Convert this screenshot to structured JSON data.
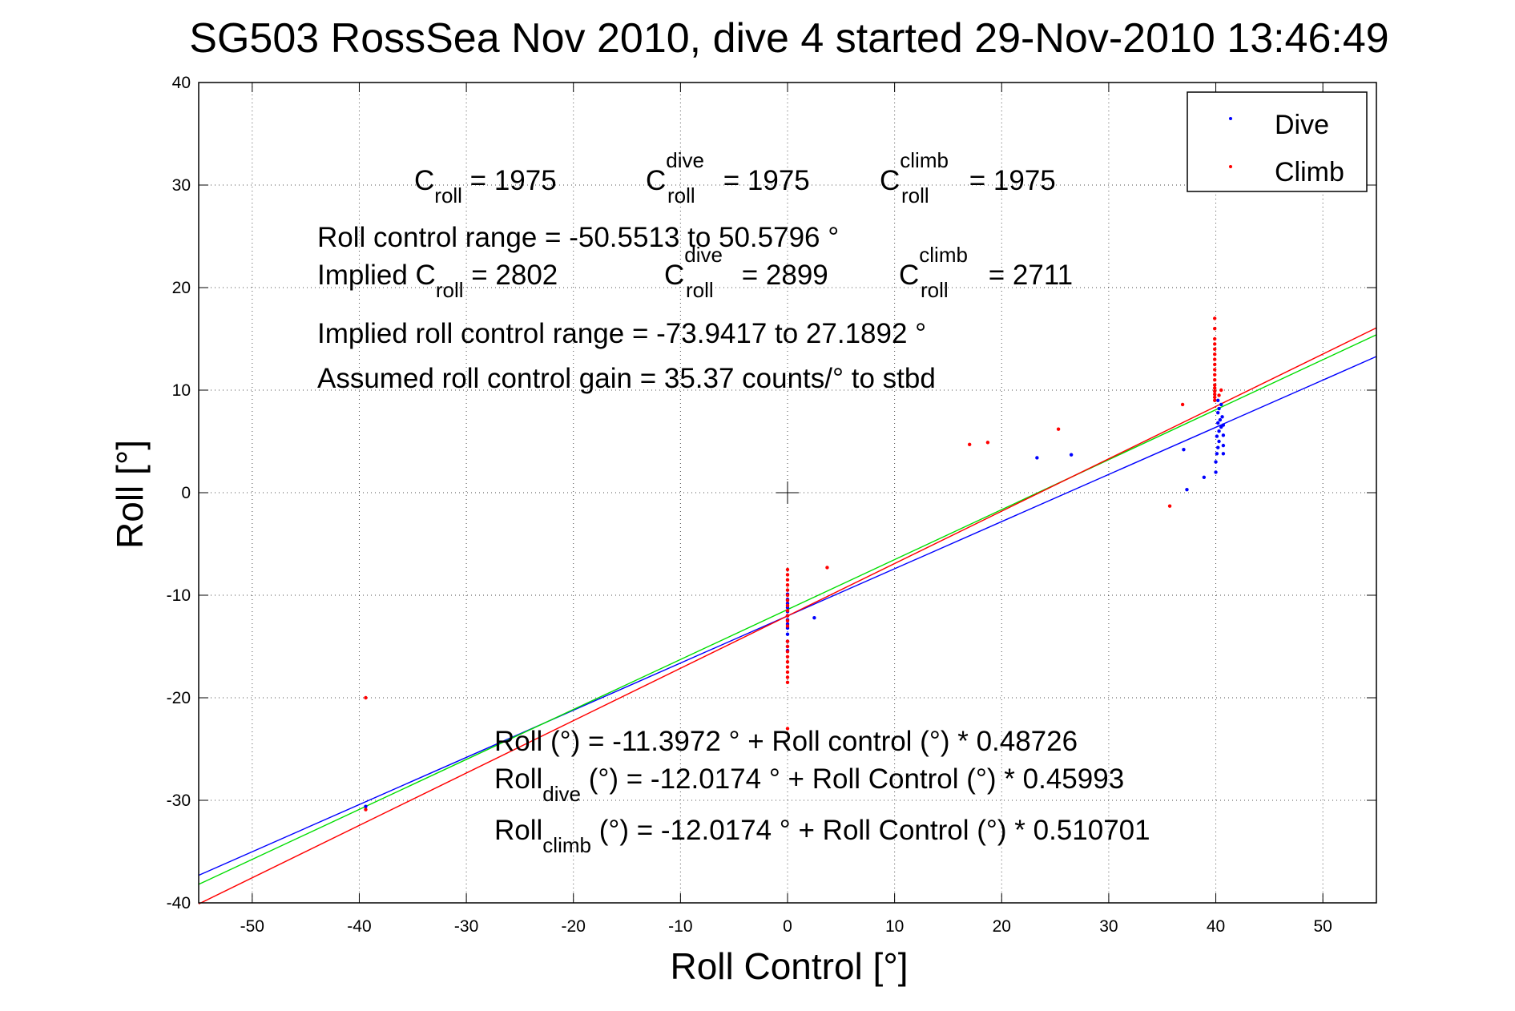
{
  "chart_data": {
    "type": "scatter",
    "title": "SG503 RossSea Nov 2010, dive 4 started 29-Nov-2010 13:46:49",
    "xlabel": "Roll Control [°]",
    "ylabel": "Roll [°]",
    "xlim": [
      -55,
      55
    ],
    "ylim": [
      -40,
      40
    ],
    "x_ticks": [
      "-50",
      "-40",
      "-30",
      "-20",
      "-10",
      "0",
      "10",
      "20",
      "30",
      "40",
      "50"
    ],
    "y_ticks": [
      "40",
      "30",
      "20",
      "10",
      "0",
      "-10",
      "-20",
      "-30",
      "-40"
    ],
    "grid": "dotted",
    "legend_placement": "top-right",
    "colors": {
      "dive": "#0000ff",
      "climb": "#ff0000",
      "overall_fit": "#00dd00",
      "axes": "#000000"
    },
    "series": [
      {
        "name": "Dive",
        "marker": "point",
        "color": "#0000ff",
        "points": [
          [
            -39.4,
            -30.6
          ],
          [
            0.0,
            -9.9
          ],
          [
            0.0,
            -10.4
          ],
          [
            0.0,
            -10.8
          ],
          [
            0.0,
            -11.2
          ],
          [
            0.0,
            -11.6
          ],
          [
            0.0,
            -12.0
          ],
          [
            0.0,
            -12.4
          ],
          [
            0.0,
            -12.8
          ],
          [
            0.0,
            -13.2
          ],
          [
            0.0,
            -13.8
          ],
          [
            0.0,
            -14.5
          ],
          [
            0.0,
            -15.0
          ],
          [
            0.0,
            -15.4
          ],
          [
            2.5,
            -12.2
          ],
          [
            23.3,
            3.4
          ],
          [
            26.5,
            3.7
          ],
          [
            37.3,
            0.3
          ],
          [
            38.9,
            1.5
          ],
          [
            37.0,
            4.2
          ],
          [
            40.0,
            2.0
          ],
          [
            40.0,
            3.0
          ],
          [
            40.1,
            3.8
          ],
          [
            40.2,
            4.4
          ],
          [
            40.3,
            5.0
          ],
          [
            40.1,
            5.5
          ],
          [
            40.3,
            6.0
          ],
          [
            40.5,
            6.4
          ],
          [
            40.2,
            6.8
          ],
          [
            40.4,
            7.1
          ],
          [
            40.6,
            7.4
          ],
          [
            40.2,
            7.8
          ],
          [
            40.3,
            8.2
          ],
          [
            40.5,
            8.6
          ],
          [
            40.2,
            9.0
          ],
          [
            40.7,
            3.8
          ],
          [
            40.7,
            4.6
          ],
          [
            40.7,
            5.6
          ],
          [
            40.7,
            6.6
          ]
        ]
      },
      {
        "name": "Climb",
        "marker": "point",
        "color": "#ff0000",
        "points": [
          [
            -39.4,
            -20.0
          ],
          [
            -39.4,
            -30.9
          ],
          [
            0.0,
            -7.5
          ],
          [
            0.0,
            -8.0
          ],
          [
            0.0,
            -8.5
          ],
          [
            0.0,
            -9.0
          ],
          [
            0.0,
            -9.5
          ],
          [
            0.0,
            -10.0
          ],
          [
            0.0,
            -10.5
          ],
          [
            0.0,
            -11.0
          ],
          [
            0.0,
            -11.5
          ],
          [
            0.0,
            -12.0
          ],
          [
            0.0,
            -12.5
          ],
          [
            0.0,
            -13.0
          ],
          [
            0.0,
            -14.5
          ],
          [
            0.0,
            -15.0
          ],
          [
            0.0,
            -15.5
          ],
          [
            0.0,
            -16.0
          ],
          [
            0.0,
            -16.5
          ],
          [
            0.0,
            -17.0
          ],
          [
            0.0,
            -17.5
          ],
          [
            0.0,
            -18.0
          ],
          [
            0.0,
            -18.5
          ],
          [
            0.0,
            -23.0
          ],
          [
            3.7,
            -7.3
          ],
          [
            17.0,
            4.7
          ],
          [
            18.7,
            4.9
          ],
          [
            25.3,
            6.2
          ],
          [
            35.7,
            -1.3
          ],
          [
            36.9,
            8.6
          ],
          [
            39.9,
            9.0
          ],
          [
            39.9,
            9.3
          ],
          [
            39.9,
            9.6
          ],
          [
            39.9,
            9.9
          ],
          [
            39.9,
            10.2
          ],
          [
            39.9,
            10.5
          ],
          [
            39.9,
            11.0
          ],
          [
            39.9,
            11.5
          ],
          [
            39.9,
            12.0
          ],
          [
            39.9,
            12.5
          ],
          [
            39.9,
            13.0
          ],
          [
            39.9,
            13.5
          ],
          [
            39.9,
            14.0
          ],
          [
            39.9,
            14.5
          ],
          [
            39.9,
            15.0
          ],
          [
            39.9,
            16.0
          ],
          [
            39.9,
            17.0
          ],
          [
            40.3,
            9.5
          ],
          [
            40.5,
            10.0
          ]
        ]
      }
    ],
    "fit_lines": [
      {
        "id": "dive",
        "color": "#0000ff",
        "intercept": -12.0174,
        "slope": 0.45993
      },
      {
        "id": "overall",
        "color": "#00dd00",
        "intercept": -11.3972,
        "slope": 0.48726
      },
      {
        "id": "climb",
        "color": "#ff0000",
        "intercept": -12.0174,
        "slope": 0.510701
      }
    ],
    "legend": [
      {
        "label": "Dive",
        "color": "#0000ff"
      },
      {
        "label": "Climb",
        "color": "#ff0000"
      }
    ],
    "annotations": {
      "c_roll": {
        "base": "C",
        "sub": "roll",
        "value": " = 1975"
      },
      "c_roll_dive": {
        "base": "C",
        "sup": "dive",
        "sub": "roll",
        "value": " = 1975"
      },
      "c_roll_climb": {
        "base": "C",
        "sup": "climb",
        "sub": "roll",
        "value": " = 1975"
      },
      "roll_control_range": "Roll control range = -50.5513 to 50.5796 °",
      "implied_c_roll": {
        "prefix": "Implied C",
        "sub": "roll",
        "value": " = 2802"
      },
      "implied_c_roll_dive": {
        "base": "C",
        "sup": "dive",
        "sub": "roll",
        "value": " = 2899"
      },
      "implied_c_roll_climb": {
        "base": "C",
        "sup": "climb",
        "sub": "roll",
        "value": " = 2711"
      },
      "implied_range": "Implied roll control range = -73.9417 to 27.1892 °",
      "gain": "Assumed roll control gain = 35.37 counts/° to stbd",
      "fit_overall": "Roll (°) = -11.3972 ° + Roll control (°) * 0.48726",
      "fit_dive": {
        "base": "Roll",
        "sub": "dive",
        "rest": " (°) = -12.0174 ° + Roll Control (°) * 0.45993"
      },
      "fit_climb": {
        "base": "Roll",
        "sub": "climb",
        "rest": " (°) = -12.0174 ° + Roll Control (°) * 0.510701"
      }
    }
  }
}
